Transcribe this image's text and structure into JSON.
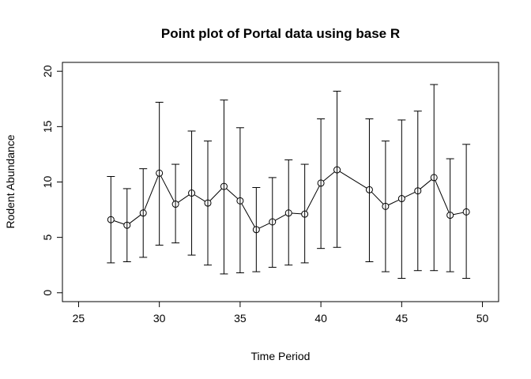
{
  "chart_data": {
    "type": "scatter",
    "title": "Point plot of Portal data using base R",
    "xlabel": "Time Period",
    "ylabel": "Rodent Abundance",
    "xlim": [
      24,
      51
    ],
    "ylim": [
      -0.8,
      20.8
    ],
    "xticks": [
      25,
      30,
      35,
      40,
      45,
      50
    ],
    "yticks": [
      0,
      5,
      10,
      15,
      20
    ],
    "grid": false,
    "legend": "none",
    "point_style": "open-circle-connected",
    "series": [
      {
        "x": [
          27,
          28,
          29,
          30,
          31,
          32,
          33,
          34,
          35,
          36,
          37,
          38,
          39,
          40,
          41,
          43,
          44,
          45,
          46,
          47,
          48,
          49
        ],
        "y": [
          6.6,
          6.1,
          7.2,
          10.8,
          8.0,
          9.0,
          8.1,
          9.6,
          8.3,
          5.7,
          6.4,
          7.2,
          7.1,
          9.9,
          11.1,
          9.3,
          7.8,
          8.5,
          9.2,
          10.4,
          7.0,
          7.3
        ],
        "y_lower": [
          2.7,
          2.8,
          3.2,
          4.3,
          4.5,
          3.4,
          2.5,
          1.7,
          1.8,
          1.9,
          2.3,
          2.5,
          2.7,
          4.0,
          4.1,
          2.8,
          1.9,
          1.3,
          2.0,
          2.0,
          1.9,
          1.3
        ],
        "y_upper": [
          10.5,
          9.4,
          11.2,
          17.2,
          11.6,
          14.6,
          13.7,
          17.4,
          14.9,
          9.5,
          10.4,
          12.0,
          11.6,
          15.7,
          18.2,
          15.7,
          13.7,
          15.6,
          16.4,
          18.8,
          12.1,
          13.4
        ]
      }
    ]
  }
}
